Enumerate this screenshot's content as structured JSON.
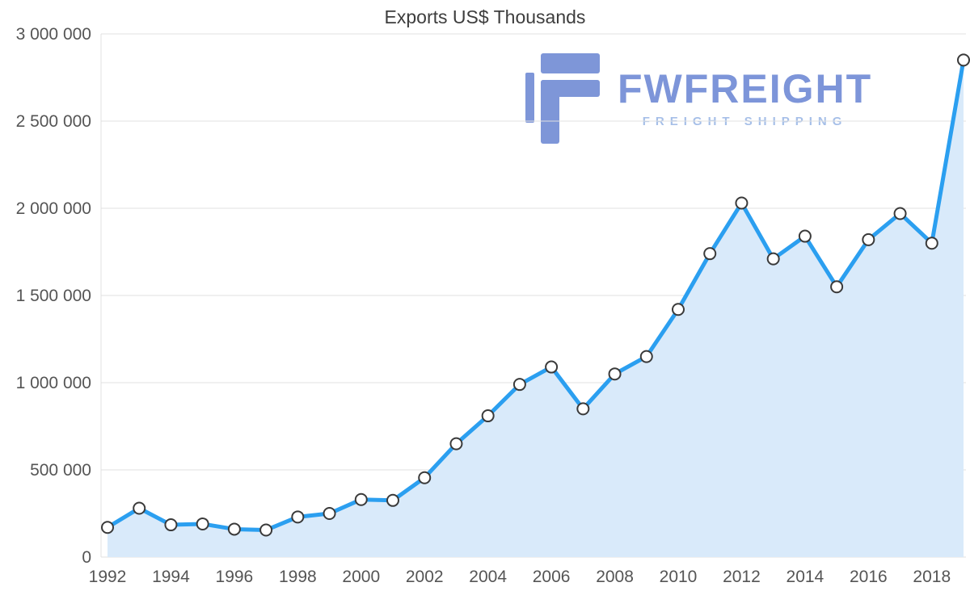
{
  "watermark": {
    "brand": "FWFREIGHT",
    "tagline": "FREIGHT SHIPPING",
    "brand_color": "#7d95d9",
    "tagline_color": "#a6bfe8",
    "icon_color": "#7e96d8"
  },
  "chart_data": {
    "type": "area",
    "title": "Exports US$ Thousands",
    "x": [
      1992,
      1993,
      1994,
      1995,
      1996,
      1997,
      1998,
      1999,
      2000,
      2001,
      2002,
      2003,
      2004,
      2005,
      2006,
      2007,
      2008,
      2009,
      2010,
      2011,
      2012,
      2013,
      2014,
      2015,
      2016,
      2017,
      2018,
      2019
    ],
    "values": [
      170000,
      280000,
      185000,
      190000,
      160000,
      155000,
      230000,
      250000,
      330000,
      325000,
      455000,
      650000,
      810000,
      990000,
      1090000,
      850000,
      1050000,
      1150000,
      1420000,
      1740000,
      2030000,
      1710000,
      1840000,
      1550000,
      1820000,
      1970000,
      1800000,
      2850000
    ],
    "xtick_labels": [
      "1992",
      "1994",
      "1996",
      "1998",
      "2000",
      "2002",
      "2004",
      "2006",
      "2008",
      "2010",
      "2012",
      "2014",
      "2016",
      "2018"
    ],
    "ylim": [
      0,
      3000000
    ],
    "ytick_interval": 500000,
    "grid": true,
    "legend": "none",
    "line_color": "#2b9ff0",
    "area_color": "#d9eafa",
    "marker_fill": "#ffffff",
    "marker_stroke": "#3a3a3a",
    "grid_color": "#e0e0e0",
    "tick_color": "#555555"
  }
}
